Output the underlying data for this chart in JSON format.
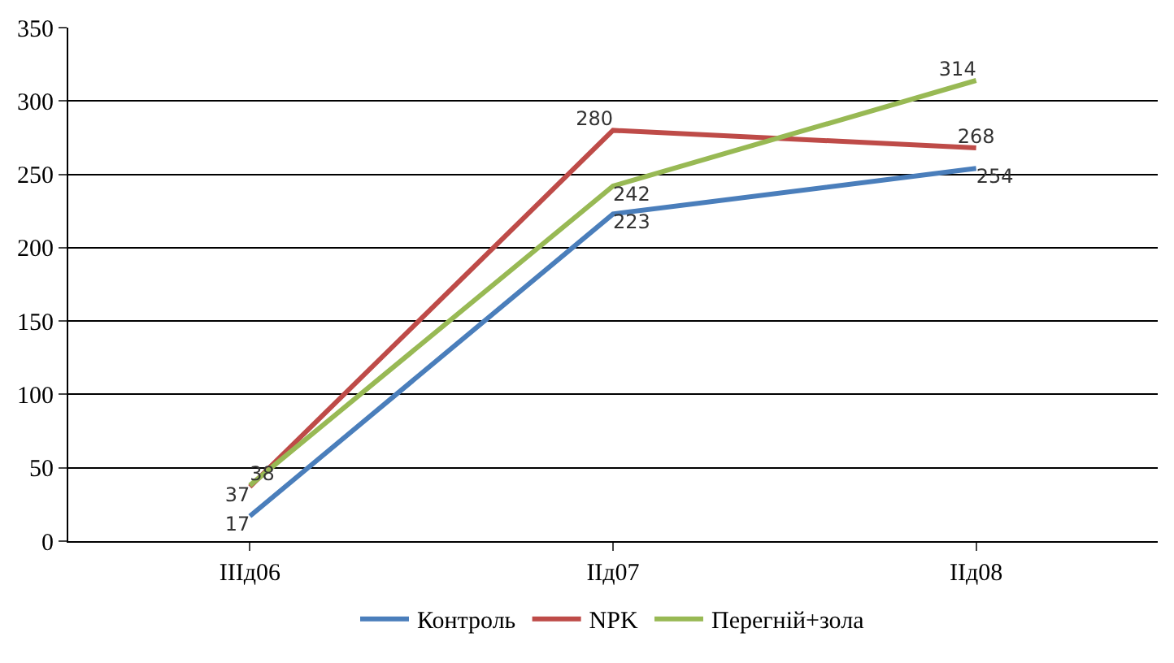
{
  "chart_data": {
    "type": "line",
    "categories": [
      "IIIд06",
      "IIд07",
      "IIд08"
    ],
    "series": [
      {
        "name": "Контроль",
        "color": "#4a7ebb",
        "values": [
          17,
          223,
          254
        ]
      },
      {
        "name": "NPK",
        "color": "#be4b48",
        "values": [
          37,
          280,
          268
        ]
      },
      {
        "name": "Перегній+зола",
        "color": "#98b954",
        "values": [
          38,
          242,
          314
        ]
      }
    ],
    "ylim": [
      0,
      350
    ],
    "yticks": [
      0,
      50,
      100,
      150,
      200,
      250,
      300,
      350
    ],
    "grid": "y",
    "legend": "bottom",
    "data_labels": true,
    "marker": "none",
    "line_style": "solid"
  }
}
